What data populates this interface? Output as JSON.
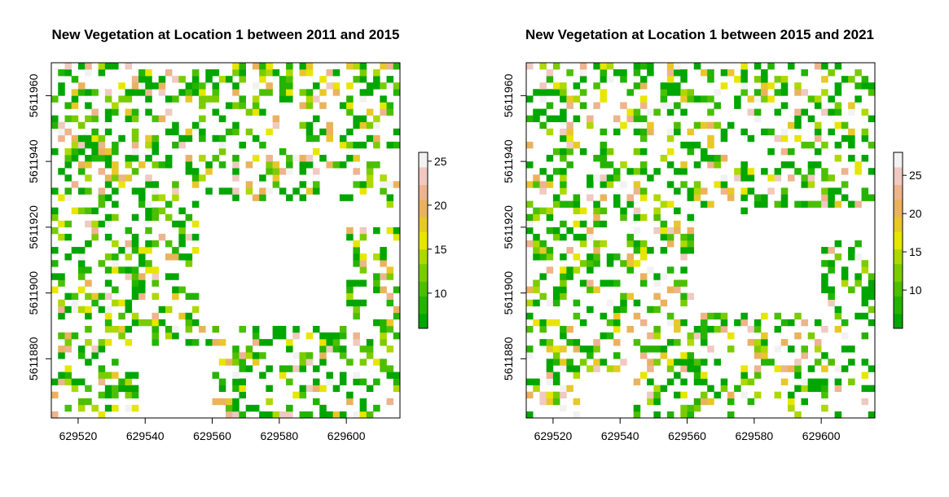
{
  "chart_data": [
    {
      "type": "heatmap",
      "title": "New Vegetation at Location 1 between 2011 and 2015",
      "xlabel": "",
      "ylabel": "",
      "xlim": [
        629512,
        629616
      ],
      "ylim": [
        5611862,
        5611970
      ],
      "x_ticks": [
        629520,
        629540,
        629560,
        629580,
        629600
      ],
      "y_ticks": [
        5611880,
        5611900,
        5611920,
        5611940,
        5611960
      ],
      "colorbar": {
        "ticks": [
          10,
          15,
          20,
          25
        ],
        "range": [
          6,
          26
        ]
      },
      "cell_size": 2,
      "grid": false,
      "legend": "right",
      "empty_regions": [
        {
          "x": [
            629540,
            629560
          ],
          "y": [
            5611862,
            5611876
          ]
        },
        {
          "x": [
            629532,
            629562
          ],
          "y": [
            5611876,
            5611884
          ]
        },
        {
          "x": [
            629556,
            629600
          ],
          "y": [
            5611890,
            5611920
          ]
        },
        {
          "x": [
            629556,
            629612
          ],
          "y": [
            5611920,
            5611928
          ]
        }
      ]
    },
    {
      "type": "heatmap",
      "title": "New Vegetation at Location 1 between 2015 and 2021",
      "xlabel": "",
      "ylabel": "",
      "xlim": [
        629512,
        629616
      ],
      "ylim": [
        5611862,
        5611970
      ],
      "x_ticks": [
        629520,
        629540,
        629560,
        629580,
        629600
      ],
      "y_ticks": [
        5611880,
        5611900,
        5611920,
        5611940,
        5611960
      ],
      "colorbar": {
        "ticks": [
          10,
          15,
          20,
          25
        ],
        "range": [
          5,
          28
        ]
      },
      "cell_size": 2,
      "grid": false,
      "legend": "right",
      "empty_regions": [
        {
          "x": [
            629528,
            629544
          ],
          "y": [
            5611862,
            5611876
          ]
        },
        {
          "x": [
            629562,
            629600
          ],
          "y": [
            5611894,
            5611924
          ]
        },
        {
          "x": [
            629580,
            629616
          ],
          "y": [
            5611916,
            5611926
          ]
        }
      ]
    }
  ],
  "palette": [
    "#00A600",
    "#24B300",
    "#4CC000",
    "#7ACC00",
    "#ADD800",
    "#E6E600",
    "#E8C72B",
    "#EBB25E",
    "#EDB48E",
    "#F0C9C0",
    "#F2F2F2"
  ]
}
